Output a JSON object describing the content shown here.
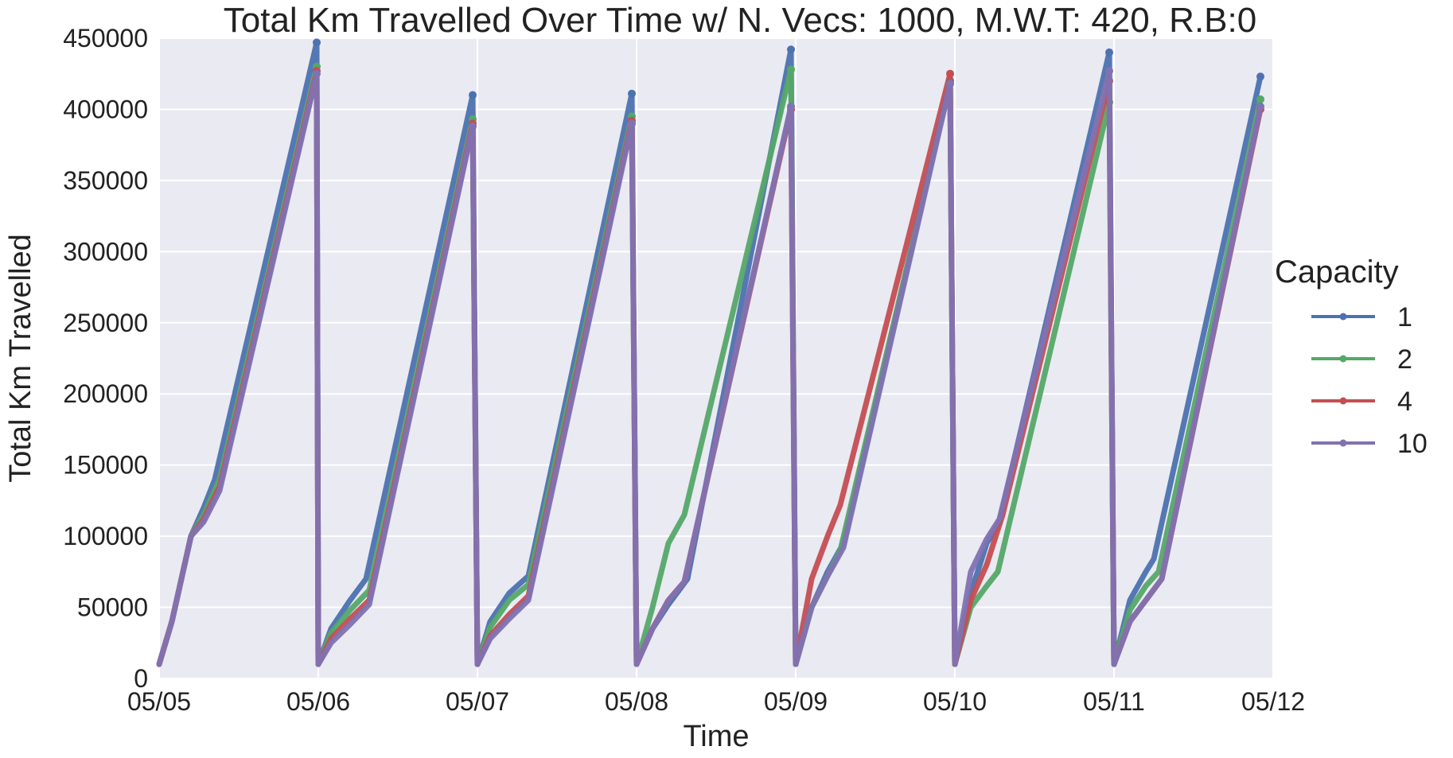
{
  "chart_data": {
    "type": "line",
    "title": "Total Km Travelled Over Time w/ N. Vecs: 1000, M.W.T: 420, R.B:0",
    "xlabel": "Time",
    "ylabel": "Total Km Travelled",
    "ylim": [
      0,
      450000
    ],
    "yticks": [
      "0",
      "50000",
      "100000",
      "150000",
      "200000",
      "250000",
      "300000",
      "350000",
      "400000",
      "450000"
    ],
    "xlim": [
      "05/05",
      "05/12"
    ],
    "xticks": [
      "05/05",
      "05/06",
      "05/07",
      "05/08",
      "05/09",
      "05/10",
      "05/11",
      "05/12"
    ],
    "grid": true,
    "legend": {
      "title": "Capacity",
      "position": "right"
    },
    "x_unit": "day (05/05 = 0)",
    "series": [
      {
        "name": "1",
        "color": "#4c72b0",
        "cycles": [
          {
            "start": 0,
            "peak": 0.99,
            "points": [
              [
                0,
                10000
              ],
              [
                0.08,
                40000
              ],
              [
                0.2,
                100000
              ],
              [
                0.28,
                120000
              ],
              [
                0.35,
                140000
              ],
              [
                0.99,
                447000
              ]
            ]
          },
          {
            "start": 1.0,
            "peak": 1.97,
            "points": [
              [
                1.0,
                10000
              ],
              [
                1.08,
                35000
              ],
              [
                1.2,
                55000
              ],
              [
                1.3,
                70000
              ],
              [
                1.97,
                410000
              ]
            ]
          },
          {
            "start": 2.0,
            "peak": 2.97,
            "points": [
              [
                2.0,
                10000
              ],
              [
                2.08,
                40000
              ],
              [
                2.2,
                60000
              ],
              [
                2.32,
                72000
              ],
              [
                2.97,
                411000
              ]
            ]
          },
          {
            "start": 3.0,
            "peak": 3.97,
            "points": [
              [
                3.0,
                10000
              ],
              [
                3.1,
                35000
              ],
              [
                3.2,
                52000
              ],
              [
                3.32,
                70000
              ],
              [
                3.97,
                442000
              ]
            ]
          },
          {
            "start": 4.0,
            "peak": 4.97,
            "points": [
              [
                4.0,
                10000
              ],
              [
                4.1,
                50000
              ],
              [
                4.2,
                75000
              ],
              [
                4.3,
                95000
              ],
              [
                4.97,
                420000
              ]
            ]
          },
          {
            "start": 5.0,
            "peak": 5.97,
            "points": [
              [
                5.0,
                10000
              ],
              [
                5.1,
                60000
              ],
              [
                5.2,
                95000
              ],
              [
                5.28,
                110000
              ],
              [
                5.97,
                440000
              ]
            ]
          },
          {
            "start": 6.0,
            "peak": 6.92,
            "points": [
              [
                6.0,
                10000
              ],
              [
                6.1,
                55000
              ],
              [
                6.2,
                75000
              ],
              [
                6.25,
                84000
              ],
              [
                6.92,
                423000
              ]
            ]
          }
        ]
      },
      {
        "name": "2",
        "color": "#55a868",
        "cycles": [
          {
            "start": 0,
            "peak": 0.99,
            "points": [
              [
                0,
                10000
              ],
              [
                0.08,
                40000
              ],
              [
                0.2,
                100000
              ],
              [
                0.28,
                115000
              ],
              [
                0.38,
                140000
              ],
              [
                0.99,
                430000
              ]
            ]
          },
          {
            "start": 1.0,
            "peak": 1.97,
            "points": [
              [
                1.0,
                10000
              ],
              [
                1.08,
                32000
              ],
              [
                1.2,
                48000
              ],
              [
                1.32,
                62000
              ],
              [
                1.97,
                393000
              ]
            ]
          },
          {
            "start": 2.0,
            "peak": 2.97,
            "points": [
              [
                2.0,
                10000
              ],
              [
                2.08,
                36000
              ],
              [
                2.2,
                55000
              ],
              [
                2.32,
                66000
              ],
              [
                2.97,
                395000
              ]
            ]
          },
          {
            "start": 3.0,
            "peak": 3.97,
            "points": [
              [
                3.0,
                10000
              ],
              [
                3.1,
                50000
              ],
              [
                3.2,
                95000
              ],
              [
                3.3,
                115000
              ],
              [
                3.97,
                428000
              ]
            ]
          },
          {
            "start": 4.0,
            "peak": 4.97,
            "points": [
              [
                4.0,
                10000
              ],
              [
                4.1,
                50000
              ],
              [
                4.2,
                72000
              ],
              [
                4.28,
                90000
              ],
              [
                4.97,
                418000
              ]
            ]
          },
          {
            "start": 5.0,
            "peak": 5.97,
            "points": [
              [
                5.0,
                10000
              ],
              [
                5.1,
                50000
              ],
              [
                5.2,
                65000
              ],
              [
                5.27,
                75000
              ],
              [
                5.97,
                405000
              ]
            ]
          },
          {
            "start": 6.0,
            "peak": 6.92,
            "points": [
              [
                6.0,
                10000
              ],
              [
                6.1,
                48000
              ],
              [
                6.2,
                65000
              ],
              [
                6.28,
                75000
              ],
              [
                6.92,
                407000
              ]
            ]
          }
        ]
      },
      {
        "name": "4",
        "color": "#c44e52",
        "cycles": [
          {
            "start": 0,
            "peak": 0.99,
            "points": [
              [
                0,
                10000
              ],
              [
                0.08,
                40000
              ],
              [
                0.2,
                100000
              ],
              [
                0.28,
                112000
              ],
              [
                0.38,
                135000
              ],
              [
                0.99,
                427000
              ]
            ]
          },
          {
            "start": 1.0,
            "peak": 1.97,
            "points": [
              [
                1.0,
                10000
              ],
              [
                1.08,
                28000
              ],
              [
                1.2,
                42000
              ],
              [
                1.32,
                55000
              ],
              [
                1.97,
                390000
              ]
            ]
          },
          {
            "start": 2.0,
            "peak": 2.97,
            "points": [
              [
                2.0,
                10000
              ],
              [
                2.08,
                30000
              ],
              [
                2.2,
                45000
              ],
              [
                2.32,
                58000
              ],
              [
                2.97,
                392000
              ]
            ]
          },
          {
            "start": 3.0,
            "peak": 3.97,
            "points": [
              [
                3.0,
                10000
              ],
              [
                3.1,
                35000
              ],
              [
                3.2,
                55000
              ],
              [
                3.3,
                68000
              ],
              [
                3.97,
                400000
              ]
            ]
          },
          {
            "start": 4.0,
            "peak": 4.97,
            "points": [
              [
                4.0,
                10000
              ],
              [
                4.1,
                70000
              ],
              [
                4.2,
                100000
              ],
              [
                4.28,
                122000
              ],
              [
                4.97,
                425000
              ]
            ]
          },
          {
            "start": 5.0,
            "peak": 5.97,
            "points": [
              [
                5.0,
                10000
              ],
              [
                5.1,
                55000
              ],
              [
                5.2,
                80000
              ],
              [
                5.3,
                115000
              ],
              [
                5.97,
                420000
              ]
            ]
          },
          {
            "start": 6.0,
            "peak": 6.92,
            "points": [
              [
                6.0,
                10000
              ],
              [
                6.1,
                40000
              ],
              [
                6.2,
                55000
              ],
              [
                6.3,
                70000
              ],
              [
                6.92,
                400000
              ]
            ]
          }
        ]
      },
      {
        "name": "10",
        "color": "#8172b2",
        "cycles": [
          {
            "start": 0,
            "peak": 0.99,
            "points": [
              [
                0,
                10000
              ],
              [
                0.08,
                40000
              ],
              [
                0.2,
                100000
              ],
              [
                0.28,
                110000
              ],
              [
                0.38,
                132000
              ],
              [
                0.99,
                425000
              ]
            ]
          },
          {
            "start": 1.0,
            "peak": 1.97,
            "points": [
              [
                1.0,
                10000
              ],
              [
                1.08,
                25000
              ],
              [
                1.2,
                38000
              ],
              [
                1.32,
                52000
              ],
              [
                1.97,
                388000
              ]
            ]
          },
          {
            "start": 2.0,
            "peak": 2.97,
            "points": [
              [
                2.0,
                10000
              ],
              [
                2.08,
                28000
              ],
              [
                2.2,
                42000
              ],
              [
                2.32,
                55000
              ],
              [
                2.97,
                390000
              ]
            ]
          },
          {
            "start": 3.0,
            "peak": 3.97,
            "points": [
              [
                3.0,
                10000
              ],
              [
                3.1,
                35000
              ],
              [
                3.2,
                55000
              ],
              [
                3.3,
                68000
              ],
              [
                3.97,
                402000
              ]
            ]
          },
          {
            "start": 4.0,
            "peak": 4.97,
            "points": [
              [
                4.0,
                10000
              ],
              [
                4.1,
                50000
              ],
              [
                4.2,
                72000
              ],
              [
                4.3,
                92000
              ],
              [
                4.97,
                418000
              ]
            ]
          },
          {
            "start": 5.0,
            "peak": 5.97,
            "points": [
              [
                5.0,
                10000
              ],
              [
                5.1,
                75000
              ],
              [
                5.2,
                98000
              ],
              [
                5.28,
                112000
              ],
              [
                5.97,
                427000
              ]
            ]
          },
          {
            "start": 6.0,
            "peak": 6.92,
            "points": [
              [
                6.0,
                10000
              ],
              [
                6.1,
                40000
              ],
              [
                6.2,
                55000
              ],
              [
                6.3,
                70000
              ],
              [
                6.92,
                402000
              ]
            ]
          }
        ]
      }
    ]
  }
}
